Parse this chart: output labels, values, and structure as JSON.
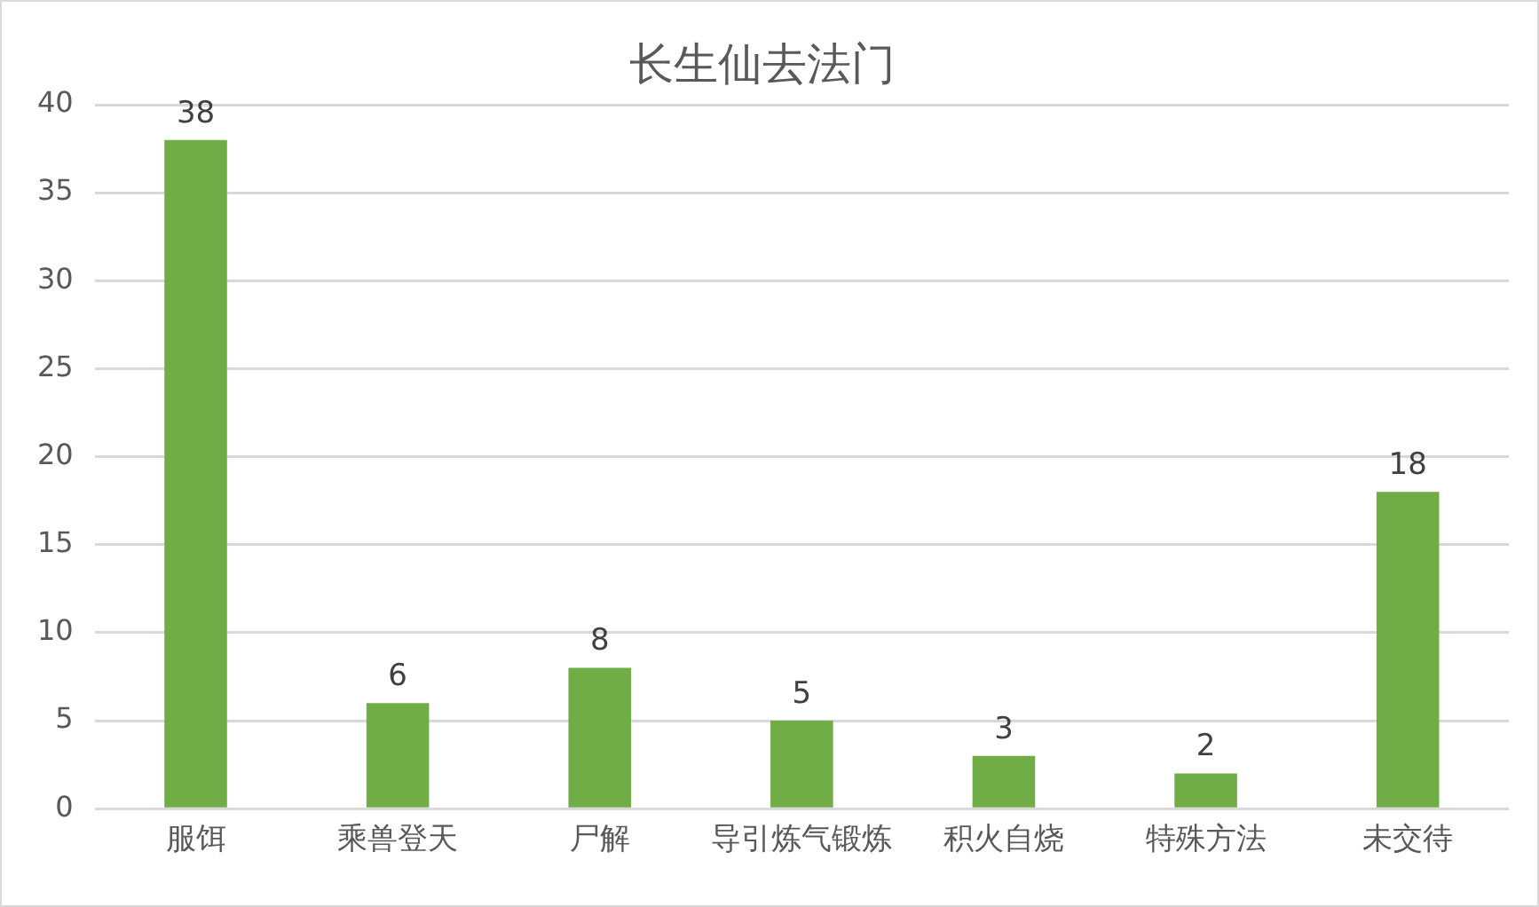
{
  "chart_data": {
    "type": "bar",
    "title": "长生仙去法门",
    "categories": [
      "服饵",
      "乘兽登天",
      "尸解",
      "导引炼气锻炼",
      "积火自烧",
      "特殊方法",
      "未交待"
    ],
    "values": [
      38,
      6,
      8,
      5,
      3,
      2,
      18
    ],
    "color": "#70ad47",
    "ylim": [
      0,
      40
    ],
    "yticks": [
      0,
      5,
      10,
      15,
      20,
      25,
      30,
      35,
      40
    ],
    "grid": "y",
    "data_labels": true
  }
}
